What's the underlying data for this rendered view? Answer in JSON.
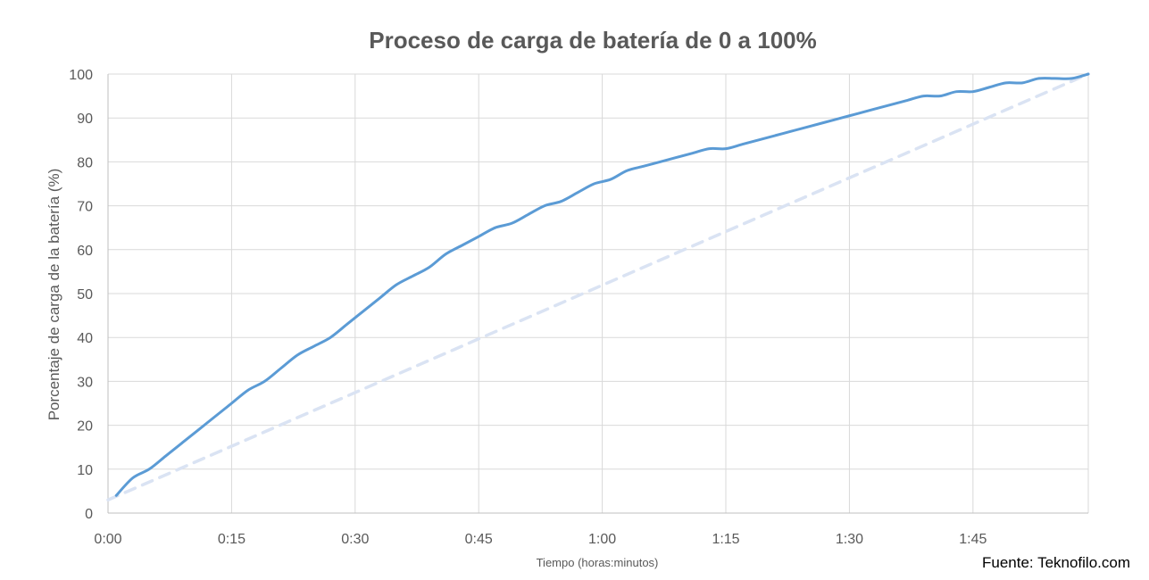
{
  "chart_data": {
    "type": "line",
    "title": "Proceso de carga de batería de 0 a 100%",
    "xlabel": "Tiempo (horas:minutos)",
    "ylabel": "Porcentaje de carga de la batería (%)",
    "source": "Fuente: Teknofilo.com",
    "x_unit": "minutes",
    "xlim": [
      0,
      119
    ],
    "ylim": [
      0,
      100
    ],
    "x_ticks": [
      {
        "value": 0,
        "label": "0:00"
      },
      {
        "value": 15,
        "label": "0:15"
      },
      {
        "value": 30,
        "label": "0:30"
      },
      {
        "value": 45,
        "label": "0:45"
      },
      {
        "value": 60,
        "label": "1:00"
      },
      {
        "value": 75,
        "label": "1:15"
      },
      {
        "value": 90,
        "label": "1:30"
      },
      {
        "value": 105,
        "label": "1:45"
      }
    ],
    "y_ticks": [
      0,
      10,
      20,
      30,
      40,
      50,
      60,
      70,
      80,
      90,
      100
    ],
    "grid": true,
    "legend": "none",
    "series": [
      {
        "style": "solid",
        "color": "#5b9bd5",
        "x": [
          1,
          3,
          5,
          7,
          9,
          11,
          13,
          15,
          17,
          19,
          21,
          23,
          25,
          27,
          29,
          31,
          33,
          35,
          37,
          39,
          41,
          43,
          45,
          47,
          49,
          51,
          53,
          55,
          57,
          59,
          61,
          63,
          65,
          67,
          69,
          71,
          73,
          75,
          77,
          79,
          81,
          83,
          85,
          87,
          89,
          91,
          93,
          95,
          97,
          99,
          101,
          103,
          105,
          107,
          109,
          111,
          113,
          115,
          117,
          119
        ],
        "y": [
          4,
          8,
          10,
          13,
          16,
          19,
          22,
          25,
          28,
          30,
          33,
          36,
          38,
          40,
          43,
          46,
          49,
          52,
          54,
          56,
          59,
          61,
          63,
          65,
          66,
          68,
          70,
          71,
          73,
          75,
          76,
          78,
          79,
          80,
          81,
          82,
          83,
          83,
          84,
          85,
          86,
          87,
          88,
          89,
          90,
          91,
          92,
          93,
          94,
          95,
          95,
          96,
          96,
          97,
          98,
          98,
          99,
          99,
          99,
          100
        ]
      },
      {
        "style": "dashed",
        "color": "#dae3f3",
        "x": [
          0,
          119
        ],
        "y": [
          3,
          100
        ]
      }
    ]
  }
}
